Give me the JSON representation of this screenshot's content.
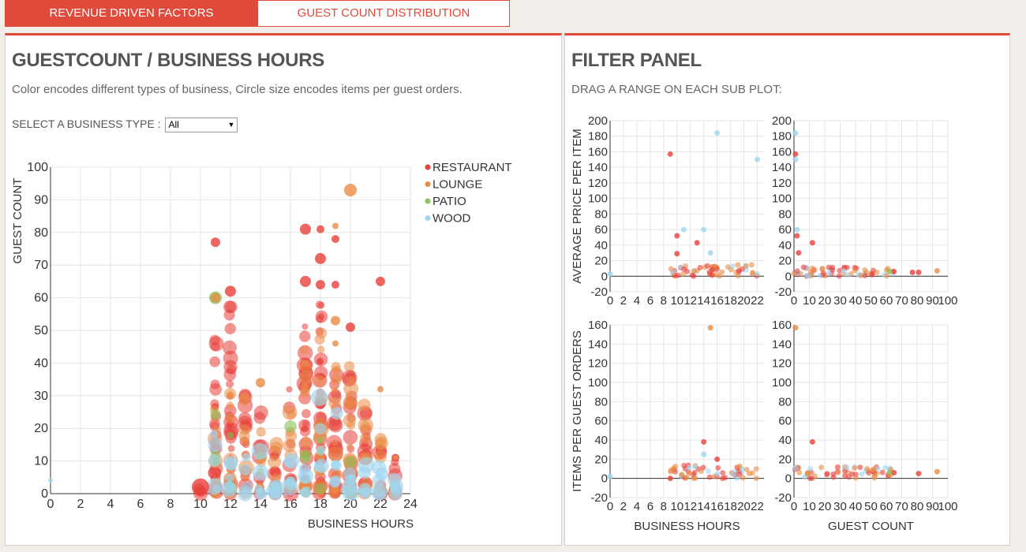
{
  "tabs": [
    {
      "label": "REVENUE DRIVEN FACTORS",
      "active": true
    },
    {
      "label": "GUEST COUNT DISTRIBUTION",
      "active": false
    }
  ],
  "left_panel": {
    "title": "GUESTCOUNT / BUSINESS HOURS",
    "subtitle": "Color encodes different types of business, Circle size encodes items per guest orders.",
    "select_label": "SELECT A BUSINESS TYPE :",
    "select_value": "All"
  },
  "right_panel": {
    "title": "FILTER PANEL",
    "subtitle": "DRAG A RANGE ON EACH SUB PLOT:"
  },
  "colors": {
    "accent": "#e04a3a",
    "restaurant": "#e8403a",
    "lounge": "#e98c45",
    "patio": "#8cc25a",
    "wood": "#9fd6f0"
  },
  "chart_data": [
    {
      "type": "scatter",
      "id": "main",
      "title": "",
      "xlabel": "BUSINESS HOURS",
      "ylabel": "GUEST COUNT",
      "xlim": [
        0,
        24
      ],
      "ylim": [
        0,
        100
      ],
      "xticks": [
        0,
        2,
        4,
        6,
        8,
        10,
        12,
        14,
        16,
        18,
        20,
        22,
        24
      ],
      "yticks": [
        0,
        10,
        20,
        30,
        40,
        50,
        60,
        70,
        80,
        90,
        100
      ],
      "grid": true,
      "legend_position": "top-right",
      "legend": [
        {
          "name": "RESTAURANT",
          "color_key": "restaurant"
        },
        {
          "name": "LOUNGE",
          "color_key": "lounge"
        },
        {
          "name": "PATIO",
          "color_key": "patio"
        },
        {
          "name": "WOOD",
          "color_key": "wood"
        }
      ],
      "columns": [
        {
          "x": 10,
          "ymin": 0,
          "ymax": 4,
          "type": "restaurant",
          "n": 3
        },
        {
          "x": 11,
          "ymin": 0,
          "ymax": 48,
          "type": "restaurant",
          "n": 24
        },
        {
          "x": 11,
          "ymin": 0,
          "ymax": 30,
          "type": "lounge",
          "n": 12
        },
        {
          "x": 12,
          "ymin": 0,
          "ymax": 58,
          "type": "restaurant",
          "n": 30
        },
        {
          "x": 12,
          "ymin": 0,
          "ymax": 35,
          "type": "lounge",
          "n": 14
        },
        {
          "x": 13,
          "ymin": 0,
          "ymax": 32,
          "type": "restaurant",
          "n": 16
        },
        {
          "x": 13,
          "ymin": 0,
          "ymax": 35,
          "type": "lounge",
          "n": 10
        },
        {
          "x": 14,
          "ymin": 0,
          "ymax": 25,
          "type": "restaurant",
          "n": 12
        },
        {
          "x": 14,
          "ymin": 0,
          "ymax": 33,
          "type": "lounge",
          "n": 8
        },
        {
          "x": 15,
          "ymin": 0,
          "ymax": 18,
          "type": "restaurant",
          "n": 10
        },
        {
          "x": 15,
          "ymin": 0,
          "ymax": 16,
          "type": "lounge",
          "n": 6
        },
        {
          "x": 16,
          "ymin": 0,
          "ymax": 32,
          "type": "restaurant",
          "n": 14
        },
        {
          "x": 16,
          "ymin": 0,
          "ymax": 26,
          "type": "lounge",
          "n": 8
        },
        {
          "x": 17,
          "ymin": 0,
          "ymax": 55,
          "type": "restaurant",
          "n": 28
        },
        {
          "x": 17,
          "ymin": 0,
          "ymax": 45,
          "type": "lounge",
          "n": 14
        },
        {
          "x": 18,
          "ymin": 0,
          "ymax": 60,
          "type": "restaurant",
          "n": 32
        },
        {
          "x": 18,
          "ymin": 0,
          "ymax": 50,
          "type": "lounge",
          "n": 16
        },
        {
          "x": 19,
          "ymin": 0,
          "ymax": 40,
          "type": "restaurant",
          "n": 20
        },
        {
          "x": 19,
          "ymin": 0,
          "ymax": 40,
          "type": "lounge",
          "n": 12
        },
        {
          "x": 20,
          "ymin": 0,
          "ymax": 40,
          "type": "restaurant",
          "n": 18
        },
        {
          "x": 20,
          "ymin": 0,
          "ymax": 40,
          "type": "lounge",
          "n": 14
        },
        {
          "x": 21,
          "ymin": 0,
          "ymax": 32,
          "type": "restaurant",
          "n": 14
        },
        {
          "x": 21,
          "ymin": 0,
          "ymax": 30,
          "type": "lounge",
          "n": 12
        },
        {
          "x": 22,
          "ymin": 0,
          "ymax": 18,
          "type": "restaurant",
          "n": 8
        },
        {
          "x": 22,
          "ymin": 0,
          "ymax": 17,
          "type": "lounge",
          "n": 8
        },
        {
          "x": 23,
          "ymin": 0,
          "ymax": 11,
          "type": "restaurant",
          "n": 5
        },
        {
          "x": 23,
          "ymin": 0,
          "ymax": 8,
          "type": "lounge",
          "n": 4
        }
      ],
      "wood_columns": [
        {
          "x": 11,
          "ymax": 30
        },
        {
          "x": 12,
          "ymax": 20
        },
        {
          "x": 13,
          "ymax": 15
        },
        {
          "x": 14,
          "ymax": 15
        },
        {
          "x": 15,
          "ymax": 15
        },
        {
          "x": 16,
          "ymax": 15
        },
        {
          "x": 17,
          "ymax": 20
        },
        {
          "x": 18,
          "ymax": 48
        },
        {
          "x": 19,
          "ymax": 25
        },
        {
          "x": 20,
          "ymax": 22
        },
        {
          "x": 21,
          "ymax": 18
        },
        {
          "x": 22,
          "ymax": 12
        },
        {
          "x": 23,
          "ymax": 5
        }
      ],
      "patio_columns": [
        {
          "x": 11,
          "ymax": 40
        },
        {
          "x": 12,
          "ymax": 25
        },
        {
          "x": 14,
          "ymax": 12
        },
        {
          "x": 16,
          "ymax": 22
        },
        {
          "x": 17,
          "ymax": 12
        },
        {
          "x": 18,
          "ymax": 20
        },
        {
          "x": 20,
          "ymax": 10
        }
      ],
      "points": [
        {
          "x": 0,
          "y": 4,
          "size": 3,
          "type": "wood"
        },
        {
          "x": 10,
          "y": 2,
          "size": 11,
          "type": "restaurant"
        },
        {
          "x": 11,
          "y": 77,
          "size": 6,
          "type": "restaurant"
        },
        {
          "x": 11,
          "y": 60,
          "size": 8,
          "type": "patio"
        },
        {
          "x": 11,
          "y": 60,
          "size": 6,
          "type": "lounge"
        },
        {
          "x": 12,
          "y": 62,
          "size": 7,
          "type": "restaurant"
        },
        {
          "x": 14,
          "y": 34,
          "size": 6,
          "type": "lounge"
        },
        {
          "x": 17,
          "y": 81,
          "size": 7,
          "type": "restaurant"
        },
        {
          "x": 17,
          "y": 65,
          "size": 7,
          "type": "restaurant"
        },
        {
          "x": 18,
          "y": 81,
          "size": 5,
          "type": "restaurant"
        },
        {
          "x": 18,
          "y": 72,
          "size": 7,
          "type": "restaurant"
        },
        {
          "x": 18,
          "y": 64,
          "size": 6,
          "type": "restaurant"
        },
        {
          "x": 19,
          "y": 82,
          "size": 4,
          "type": "lounge"
        },
        {
          "x": 19,
          "y": 78,
          "size": 5,
          "type": "restaurant"
        },
        {
          "x": 19,
          "y": 64,
          "size": 5,
          "type": "restaurant"
        },
        {
          "x": 19,
          "y": 53,
          "size": 6,
          "type": "lounge"
        },
        {
          "x": 19,
          "y": 46,
          "size": 4,
          "type": "lounge"
        },
        {
          "x": 20,
          "y": 93,
          "size": 8,
          "type": "lounge"
        },
        {
          "x": 20,
          "y": 51,
          "size": 6,
          "type": "restaurant"
        },
        {
          "x": 22,
          "y": 65,
          "size": 6,
          "type": "restaurant"
        },
        {
          "x": 22,
          "y": 32,
          "size": 4,
          "type": "lounge"
        },
        {
          "x": 23,
          "y": 11,
          "size": 5,
          "type": "restaurant"
        },
        {
          "x": 23,
          "y": 11,
          "size": 3,
          "type": "lounge"
        }
      ]
    },
    {
      "type": "scatter",
      "id": "filter-price-hours",
      "xlabel": "",
      "ylabel": "AVERAGE PRICE PER ITEM",
      "xlim": [
        0,
        23
      ],
      "ylim": [
        -20,
        200
      ],
      "xticks": [
        0,
        2,
        4,
        6,
        8,
        10,
        12,
        14,
        16,
        18,
        20,
        22
      ],
      "yticks": [
        -20,
        0,
        20,
        40,
        60,
        80,
        100,
        120,
        140,
        160,
        180,
        200
      ],
      "grid": true,
      "points": [
        {
          "x": 0,
          "y": 3,
          "type": "wood"
        },
        {
          "x": 9,
          "y": 157,
          "type": "restaurant"
        },
        {
          "x": 10,
          "y": 52,
          "type": "restaurant"
        },
        {
          "x": 10,
          "y": 29,
          "type": "restaurant"
        },
        {
          "x": 11,
          "y": 60,
          "type": "wood"
        },
        {
          "x": 13,
          "y": 43,
          "type": "restaurant"
        },
        {
          "x": 14,
          "y": 60,
          "type": "wood"
        },
        {
          "x": 16,
          "y": 184,
          "type": "wood"
        },
        {
          "x": 22,
          "y": 150,
          "type": "wood"
        },
        {
          "x": 15,
          "y": 30,
          "type": "wood"
        }
      ],
      "band": {
        "xmin": 9,
        "xmax": 22,
        "ymin": 0,
        "ymax": 15
      }
    },
    {
      "type": "scatter",
      "id": "filter-price-guests",
      "xlabel": "",
      "ylabel": "",
      "xlim": [
        0,
        100
      ],
      "ylim": [
        -20,
        200
      ],
      "xticks": [
        0,
        10,
        20,
        30,
        40,
        50,
        60,
        70,
        80,
        90,
        100
      ],
      "yticks": [
        -20,
        0,
        20,
        40,
        60,
        80,
        100,
        120,
        140,
        160,
        180,
        200
      ],
      "grid": true,
      "points": [
        {
          "x": 1,
          "y": 157,
          "type": "restaurant"
        },
        {
          "x": 1,
          "y": 184,
          "type": "wood"
        },
        {
          "x": 1,
          "y": 150,
          "type": "wood"
        },
        {
          "x": 2,
          "y": 60,
          "type": "wood"
        },
        {
          "x": 2,
          "y": 52,
          "type": "restaurant"
        },
        {
          "x": 12,
          "y": 43,
          "type": "restaurant"
        },
        {
          "x": 3,
          "y": 30,
          "type": "restaurant"
        },
        {
          "x": 93,
          "y": 7,
          "type": "lounge"
        },
        {
          "x": 81,
          "y": 5,
          "type": "restaurant"
        },
        {
          "x": 77,
          "y": 5,
          "type": "restaurant"
        },
        {
          "x": 65,
          "y": 6,
          "type": "restaurant"
        },
        {
          "x": 62,
          "y": 6,
          "type": "patio"
        }
      ],
      "band": {
        "xmin": 0,
        "xmax": 65,
        "ymin": 0,
        "ymax": 12
      }
    },
    {
      "type": "scatter",
      "id": "filter-items-hours",
      "xlabel": "BUSINESS HOURS",
      "ylabel": "ITEMS PER GUEST ORDERS",
      "xlim": [
        0,
        23
      ],
      "ylim": [
        -20,
        160
      ],
      "xticks": [
        0,
        2,
        4,
        6,
        8,
        10,
        12,
        14,
        16,
        18,
        20,
        22
      ],
      "yticks": [
        -20,
        0,
        20,
        40,
        60,
        80,
        100,
        120,
        140,
        160
      ],
      "grid": true,
      "points": [
        {
          "x": 0,
          "y": 2,
          "type": "wood"
        },
        {
          "x": 15,
          "y": 157,
          "type": "lounge"
        },
        {
          "x": 14,
          "y": 38,
          "type": "restaurant"
        },
        {
          "x": 14,
          "y": 25,
          "type": "wood"
        },
        {
          "x": 16,
          "y": 20,
          "type": "restaurant"
        },
        {
          "x": 9,
          "y": 0,
          "type": "restaurant"
        }
      ],
      "band": {
        "xmin": 9,
        "xmax": 22,
        "ymin": 0,
        "ymax": 14
      }
    },
    {
      "type": "scatter",
      "id": "filter-items-guests",
      "xlabel": "GUEST COUNT",
      "ylabel": "",
      "xlim": [
        0,
        100
      ],
      "ylim": [
        -20,
        160
      ],
      "xticks": [
        0,
        10,
        20,
        30,
        40,
        50,
        60,
        70,
        80,
        90,
        100
      ],
      "yticks": [
        -20,
        0,
        20,
        40,
        60,
        80,
        100,
        120,
        140,
        160
      ],
      "grid": true,
      "points": [
        {
          "x": 1,
          "y": 157,
          "type": "lounge"
        },
        {
          "x": 12,
          "y": 38,
          "type": "restaurant"
        },
        {
          "x": 93,
          "y": 7,
          "type": "lounge"
        },
        {
          "x": 81,
          "y": 5,
          "type": "restaurant"
        },
        {
          "x": 65,
          "y": 6,
          "type": "restaurant"
        },
        {
          "x": 62,
          "y": 6,
          "type": "patio"
        }
      ],
      "band": {
        "xmin": 0,
        "xmax": 65,
        "ymin": 0,
        "ymax": 12
      }
    }
  ]
}
